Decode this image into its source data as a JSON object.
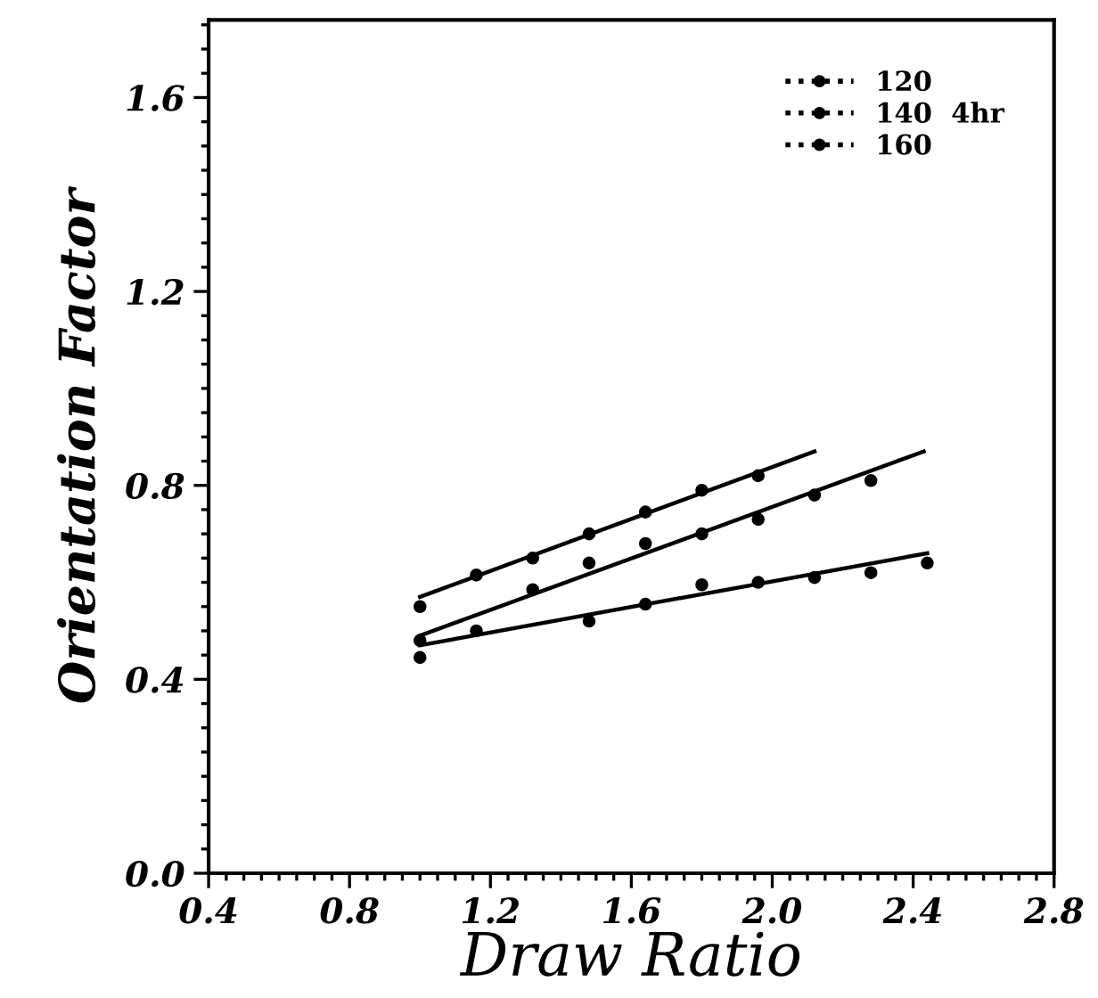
{
  "chart_data": {
    "type": "scatter",
    "xlabel": "Draw Ratio",
    "ylabel": "Orientation Factor",
    "xlim": [
      0.4,
      2.8
    ],
    "xticks": [
      0.4,
      0.8,
      1.2,
      1.6,
      {
        "value": 2.0,
        "label": "2.0"
      },
      2.4,
      2.8
    ],
    "ylim": [
      0.0,
      1.76
    ],
    "yticks": [
      {
        "value": 0.0,
        "label": "0.0"
      },
      0.4,
      0.8,
      1.2,
      1.6
    ],
    "grid": false,
    "legend": "top right",
    "marker": "circle",
    "series": [
      {
        "name": "120",
        "color": "#000000",
        "x": [
          1.0,
          1.16,
          1.32,
          1.48,
          1.64,
          1.8,
          1.96
        ],
        "values": [
          0.55,
          0.615,
          0.65,
          0.7,
          0.745,
          0.79,
          0.82
        ]
      },
      {
        "name": "140  4hr",
        "color": "#000000",
        "x": [
          1.0,
          1.32,
          1.48,
          1.64,
          1.8,
          1.96,
          2.12,
          2.28
        ],
        "values": [
          0.48,
          0.585,
          0.64,
          0.68,
          0.7,
          0.73,
          0.78,
          0.81
        ]
      },
      {
        "name": "160",
        "color": "#000000",
        "x": [
          1.0,
          1.16,
          1.48,
          1.64,
          1.8,
          1.96,
          2.12,
          2.28,
          2.44
        ],
        "values": [
          0.445,
          0.5,
          0.52,
          0.555,
          0.595,
          0.6,
          0.61,
          0.62,
          0.64
        ]
      },
      {
        "type": "line",
        "marker": "none",
        "color": "#000000",
        "x": [
          1.0,
          2.12
        ],
        "values": [
          0.57,
          0.87
        ]
      },
      {
        "type": "line",
        "marker": "none",
        "color": "#000000",
        "x": [
          1.0,
          2.43
        ],
        "values": [
          0.49,
          0.87
        ]
      },
      {
        "type": "line",
        "marker": "none",
        "color": "#000000",
        "x": [
          1.0,
          2.44
        ],
        "values": [
          0.47,
          0.66
        ]
      }
    ]
  }
}
